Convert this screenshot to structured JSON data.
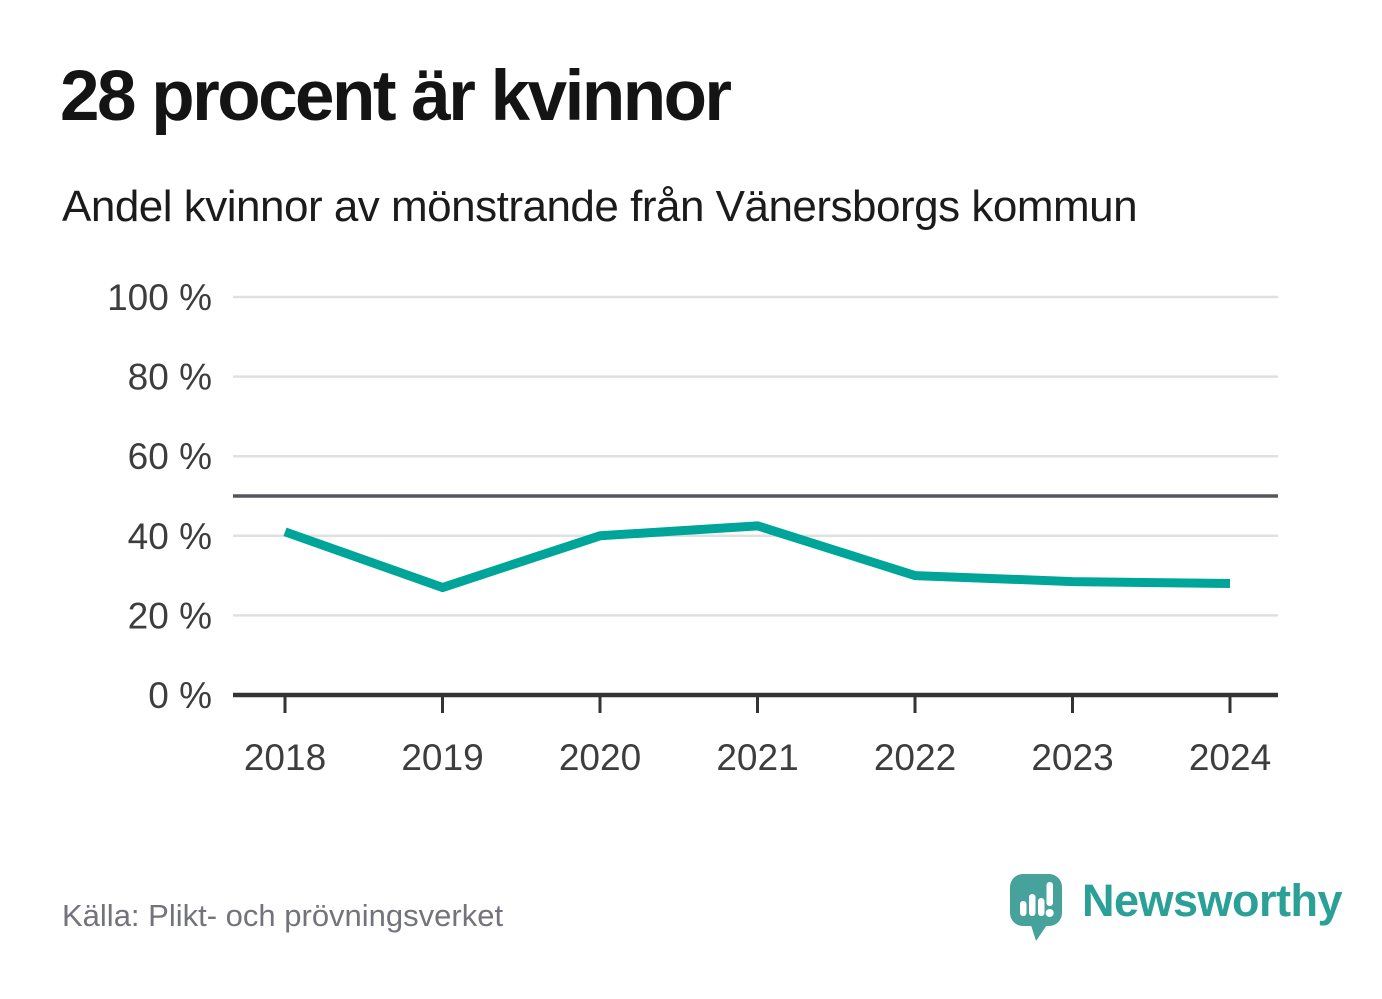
{
  "header": {
    "title": "28 procent är kvinnor",
    "subtitle": "Andel kvinnor av mönstrande från Vänersborgs kommun"
  },
  "chart_data": {
    "type": "line",
    "x": [
      2018,
      2019,
      2020,
      2021,
      2022,
      2023,
      2024
    ],
    "xtick_labels": [
      "2018",
      "2019",
      "2020",
      "2021",
      "2022",
      "2023",
      "2024"
    ],
    "series": [
      {
        "name": "Andel kvinnor av mönstrande",
        "values": [
          41,
          27,
          40,
          42.5,
          30,
          28.5,
          28
        ]
      }
    ],
    "unit": "%",
    "ylim": [
      0,
      100
    ],
    "yticks": [
      0,
      20,
      40,
      60,
      80,
      100
    ],
    "ytick_labels": [
      "0 %",
      "20 %",
      "40 %",
      "60 %",
      "80 %",
      "100 %"
    ],
    "reference_line": 50,
    "grid": "horizontal",
    "legend": "none",
    "colors": {
      "line": "#00a59a",
      "grid": "#e0e0e0",
      "reference": "#55555e",
      "axis": "#333333",
      "tick_label": "#3d3d3d"
    }
  },
  "footer": {
    "source": "Källa: Plikt- och prövningsverket",
    "logo": {
      "name": "Newsworthy",
      "text_color": "#2aa096",
      "icon_color": "#46a29b"
    }
  }
}
